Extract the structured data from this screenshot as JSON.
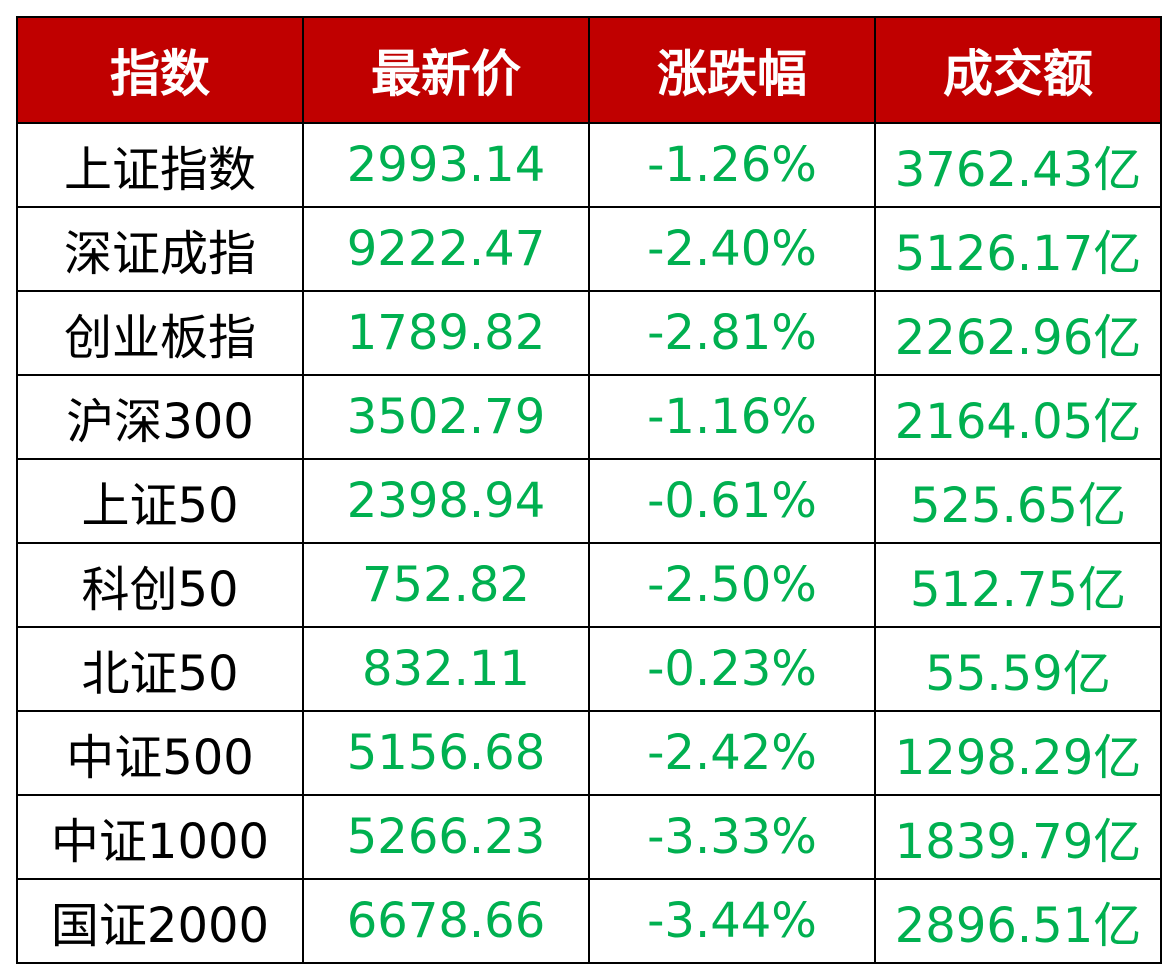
{
  "table": {
    "header": [
      "指数",
      "最新价",
      "涨跌幅",
      "成交额"
    ],
    "rows": [
      [
        "上证指数",
        "2993.14",
        "-1.26%",
        "3762.43亿"
      ],
      [
        "深证成指",
        "9222.47",
        "-2.40%",
        "5126.17亿"
      ],
      [
        "创业板指",
        "1789.82",
        "-2.81%",
        "2262.96亿"
      ],
      [
        "沪深300",
        "3502.79",
        "-1.16%",
        "2164.05亿"
      ],
      [
        "上证50",
        "2398.94",
        "-0.61%",
        "525.65亿"
      ],
      [
        "科创50",
        "752.82",
        "-2.50%",
        "512.75亿"
      ],
      [
        "北证50",
        "832.11",
        "-0.23%",
        "55.59亿"
      ],
      [
        "中证500",
        "5156.68",
        "-2.42%",
        "1298.29亿"
      ],
      [
        "中证1000",
        "5266.23",
        "-3.33%",
        "1839.79亿"
      ],
      [
        "国证2000",
        "6678.66",
        "-3.44%",
        "2896.51亿"
      ]
    ]
  }
}
